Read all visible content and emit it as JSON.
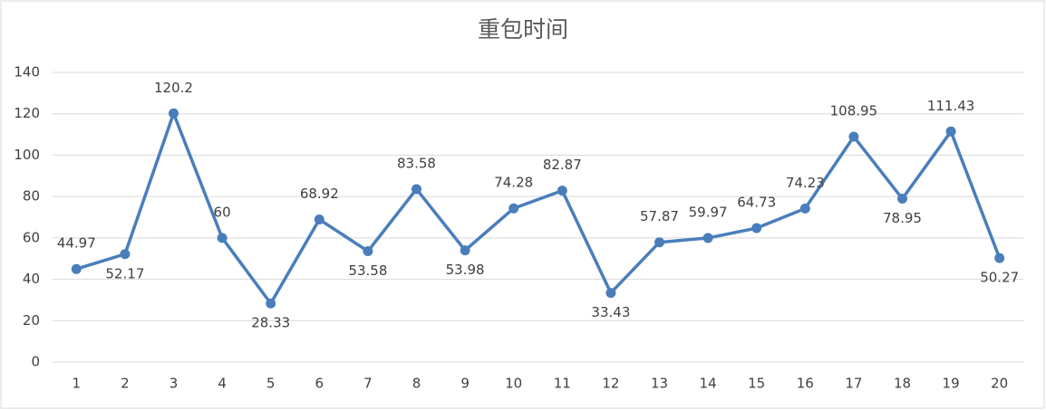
{
  "chart_data": {
    "type": "line",
    "title": "重包时间",
    "categories": [
      "1",
      "2",
      "3",
      "4",
      "5",
      "6",
      "7",
      "8",
      "9",
      "10",
      "11",
      "12",
      "13",
      "14",
      "15",
      "16",
      "17",
      "18",
      "19",
      "20"
    ],
    "values": [
      44.97,
      52.17,
      120.2,
      60,
      28.33,
      68.92,
      53.58,
      83.58,
      53.98,
      74.28,
      82.87,
      33.43,
      57.87,
      59.97,
      64.73,
      74.23,
      108.95,
      78.95,
      111.43,
      50.27
    ],
    "color": "#4a7ebb",
    "ylim": [
      0,
      140
    ],
    "yticks": [
      0,
      20,
      40,
      60,
      80,
      100,
      120,
      140
    ],
    "grid": true
  }
}
